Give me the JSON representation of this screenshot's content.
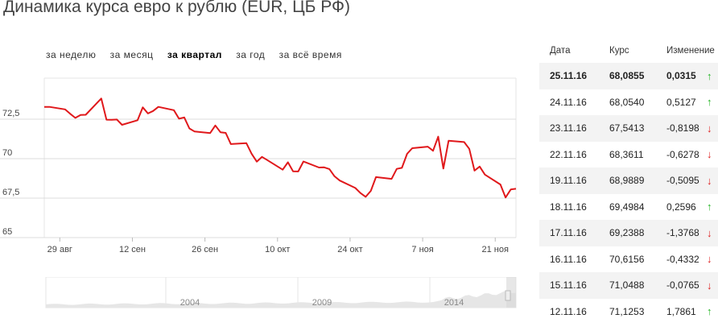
{
  "title": "Динамика курса евро к рублю (EUR, ЦБ РФ)",
  "periods": [
    {
      "label": "за неделю",
      "active": false
    },
    {
      "label": "за месяц",
      "active": false
    },
    {
      "label": "за квартал",
      "active": true
    },
    {
      "label": "за год",
      "active": false
    },
    {
      "label": "за всё время",
      "active": false
    }
  ],
  "table": {
    "headers": {
      "date": "Дата",
      "rate": "Курс",
      "change": "Изменение"
    },
    "rows": [
      {
        "date": "25.11.16",
        "rate": "68,0855",
        "change": "0,0315",
        "dir": "up"
      },
      {
        "date": "24.11.16",
        "rate": "68,0540",
        "change": "0,5127",
        "dir": "up"
      },
      {
        "date": "23.11.16",
        "rate": "67,5413",
        "change": "-0,8198",
        "dir": "down"
      },
      {
        "date": "22.11.16",
        "rate": "68,3611",
        "change": "-0,6278",
        "dir": "down"
      },
      {
        "date": "19.11.16",
        "rate": "68,9889",
        "change": "-0,5095",
        "dir": "down"
      },
      {
        "date": "18.11.16",
        "rate": "69,4984",
        "change": "0,2596",
        "dir": "up"
      },
      {
        "date": "17.11.16",
        "rate": "69,2388",
        "change": "-1,3768",
        "dir": "down"
      },
      {
        "date": "16.11.16",
        "rate": "70,6156",
        "change": "-0,4332",
        "dir": "down"
      },
      {
        "date": "15.11.16",
        "rate": "71,0488",
        "change": "-0,0765",
        "dir": "down"
      },
      {
        "date": "12.11.16",
        "rate": "71,1253",
        "change": "1,7861",
        "dir": "up"
      }
    ],
    "arrow_up": "↑",
    "arrow_down": "↓",
    "colors": {
      "up": "#22b422",
      "down": "#dd2222"
    }
  },
  "chart_data": {
    "type": "line",
    "title": "Динамика курса евро к рублю (EUR, ЦБ РФ)",
    "xlabel": "",
    "ylabel": "",
    "ylim": [
      65,
      75.1
    ],
    "yticks": [
      65,
      67.5,
      70,
      72.5
    ],
    "ytick_labels": [
      "65",
      "67,5",
      "70",
      "72,5"
    ],
    "x_tick_labels": [
      "29 авг",
      "12 сен",
      "26 сен",
      "10 окт",
      "24 окт",
      "7 ноя",
      "21 ноя"
    ],
    "x_tick_dates": [
      "2016-08-29",
      "2016-09-12",
      "2016-09-26",
      "2016-10-10",
      "2016-10-24",
      "2016-11-07",
      "2016-11-21"
    ],
    "x_range": [
      "2016-08-26",
      "2016-11-25"
    ],
    "grid": true,
    "legend": "none",
    "series": [
      {
        "color": "#e0181b",
        "points": [
          [
            "2016-08-26",
            73.28
          ],
          [
            "2016-08-27",
            73.28
          ],
          [
            "2016-08-30",
            73.12
          ],
          [
            "2016-08-31",
            72.84
          ],
          [
            "2016-09-01",
            72.58
          ],
          [
            "2016-09-02",
            72.77
          ],
          [
            "2016-09-03",
            72.78
          ],
          [
            "2016-09-06",
            73.81
          ],
          [
            "2016-09-07",
            72.47
          ],
          [
            "2016-09-08",
            72.46
          ],
          [
            "2016-09-09",
            72.48
          ],
          [
            "2016-09-10",
            72.14
          ],
          [
            "2016-09-13",
            72.43
          ],
          [
            "2016-09-14",
            73.25
          ],
          [
            "2016-09-15",
            72.86
          ],
          [
            "2016-09-16",
            73.02
          ],
          [
            "2016-09-17",
            73.28
          ],
          [
            "2016-09-20",
            73.07
          ],
          [
            "2016-09-21",
            72.53
          ],
          [
            "2016-09-22",
            72.61
          ],
          [
            "2016-09-23",
            71.91
          ],
          [
            "2016-09-24",
            71.72
          ],
          [
            "2016-09-27",
            71.62
          ],
          [
            "2016-09-28",
            72.1
          ],
          [
            "2016-09-29",
            71.67
          ],
          [
            "2016-09-30",
            71.63
          ],
          [
            "2016-10-01",
            70.92
          ],
          [
            "2016-10-04",
            70.98
          ],
          [
            "2016-10-05",
            70.31
          ],
          [
            "2016-10-06",
            69.81
          ],
          [
            "2016-10-07",
            70.11
          ],
          [
            "2016-10-08",
            69.91
          ],
          [
            "2016-10-11",
            69.3
          ],
          [
            "2016-10-12",
            69.77
          ],
          [
            "2016-10-13",
            69.2
          ],
          [
            "2016-10-14",
            69.19
          ],
          [
            "2016-10-15",
            69.82
          ],
          [
            "2016-10-18",
            69.44
          ],
          [
            "2016-10-19",
            69.45
          ],
          [
            "2016-10-20",
            69.34
          ],
          [
            "2016-10-21",
            68.88
          ],
          [
            "2016-10-22",
            68.61
          ],
          [
            "2016-10-25",
            68.14
          ],
          [
            "2016-10-26",
            67.82
          ],
          [
            "2016-10-27",
            67.58
          ],
          [
            "2016-10-28",
            67.96
          ],
          [
            "2016-10-29",
            68.83
          ],
          [
            "2016-11-01",
            68.72
          ],
          [
            "2016-11-02",
            69.35
          ],
          [
            "2016-11-03",
            69.42
          ],
          [
            "2016-11-04",
            70.31
          ],
          [
            "2016-11-05",
            70.66
          ],
          [
            "2016-11-08",
            70.76
          ],
          [
            "2016-11-09",
            70.5
          ],
          [
            "2016-11-10",
            71.39
          ],
          [
            "2016-11-11",
            69.37
          ],
          [
            "2016-11-12",
            71.13
          ],
          [
            "2016-11-15",
            71.05
          ],
          [
            "2016-11-16",
            70.62
          ],
          [
            "2016-11-17",
            69.24
          ],
          [
            "2016-11-18",
            69.5
          ],
          [
            "2016-11-19",
            68.99
          ],
          [
            "2016-11-22",
            68.36
          ],
          [
            "2016-11-23",
            67.54
          ],
          [
            "2016-11-24",
            68.05
          ],
          [
            "2016-11-25",
            68.09
          ]
        ]
      }
    ],
    "navigator": {
      "labels": [
        "2004",
        "2009",
        "2014"
      ]
    }
  }
}
